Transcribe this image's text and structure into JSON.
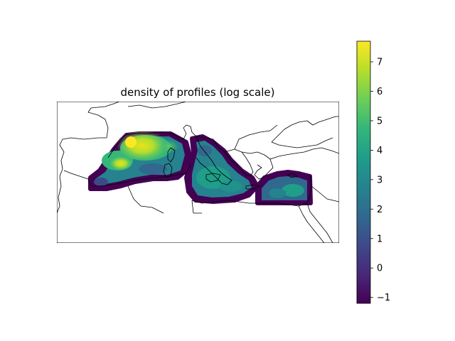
{
  "figure": {
    "title": "density of profiles (log scale)"
  },
  "colorbar": {
    "colormap": "viridis",
    "range": [
      -1.2,
      7.7
    ],
    "ticks": [
      7,
      6,
      5,
      4,
      3,
      2,
      1,
      0,
      -1
    ],
    "tick_labels": [
      "7",
      "6",
      "5",
      "4",
      "3",
      "2",
      "1",
      "0",
      "−1"
    ],
    "stops": [
      "#440154",
      "#482878",
      "#3e4989",
      "#31688e",
      "#26828e",
      "#1f9e89",
      "#35b779",
      "#6ece58",
      "#b5de2b",
      "#fde725"
    ]
  },
  "map": {
    "projection": "plain lon/lat",
    "coastlines": true,
    "frame": true,
    "axes_ticks": false,
    "colors": {
      "coastline": "#000000",
      "low": "#440154",
      "mid": "#21918c",
      "high": "#fde725"
    }
  }
}
